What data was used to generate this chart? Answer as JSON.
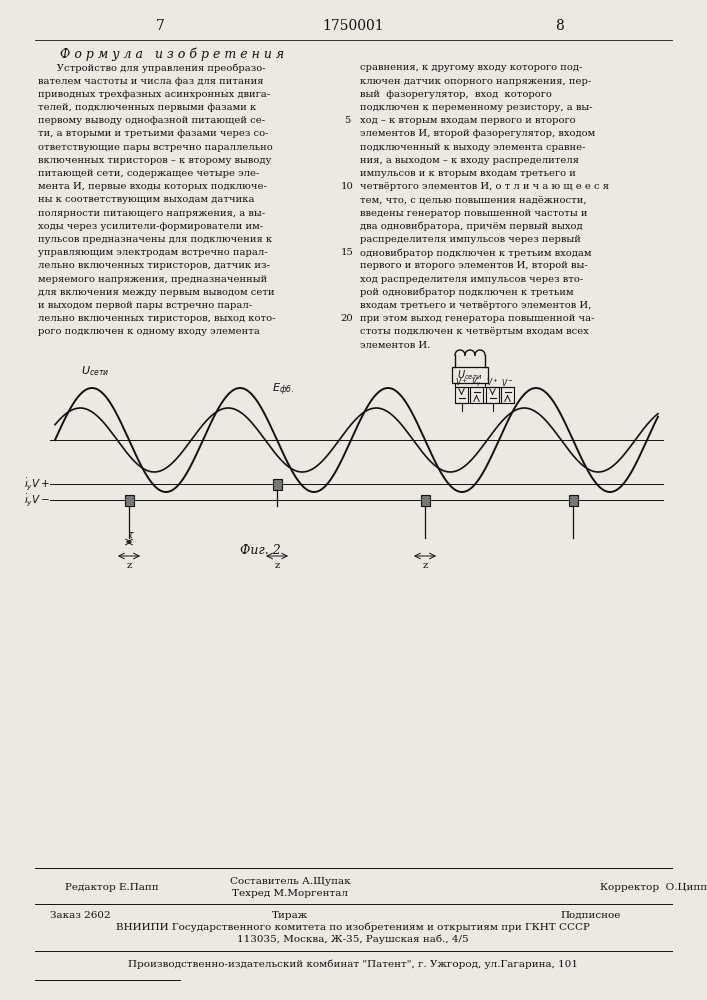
{
  "title": "1750001",
  "page_left": "7",
  "page_right": "8",
  "bg_color": "#ece9e2",
  "text_color": "#111111",
  "formula_title": "Ф о р м у л а   и з о б р е т е н и я",
  "left_text_lines": [
    "      Устройство для управления преобразо-",
    "вателем частоты и числа фаз для питания",
    "приводных трехфазных асинхронных двига-",
    "телей, подключенных первыми фазами к",
    "первому выводу однофазной питающей се-",
    "ти, а вторыми и третьими фазами через со-",
    "ответствующие пары встречно параллельно",
    "включенных тиристоров – к второму выводу",
    "питающей сети, содержащее четыре эле-",
    "мента И, первые входы которых подключе-",
    "ны к соответствующим выходам датчика",
    "полярности питающего напряжения, а вы-",
    "ходы через усилители-формирователи им-",
    "пульсов предназначены для подключения к",
    "управляющим электродам встречно парал-",
    "лельно включенных тиристоров, датчик из-",
    "меряемого напряжения, предназначенный",
    "для включения между первым выводом сети",
    "и выходом первой пары встречно парал-",
    "лельно включенных тиристоров, выход кото-",
    "рого подключен к одному входу элемента"
  ],
  "right_text_lines": [
    "сравнения, к другому входу которого под-",
    "ключен датчик опорного напряжения, пер-",
    "вый  фазорегулятор,  вход  которого",
    "подключен к переменному резистору, а вы-",
    "ход – к вторым входам первого и второго",
    "элементов И, второй фазорегулятор, входом",
    "подключенный к выходу элемента сравне-",
    "ния, а выходом – к входу распределителя",
    "импульсов и к вторым входам третьего и",
    "четвёртого элементов И, о т л и ч а ю щ е е с я",
    "тем, что, с целью повышения надёжности,",
    "введены генератор повышенной частоты и",
    "два одновибратора, причём первый выход",
    "распределителя импульсов через первый",
    "одновибратор подключен к третьим входам",
    "первого и второго элементов И, второй вы-",
    "ход распределителя импульсов через вто-",
    "рой одновибратор подключен к третьим",
    "входам третьего и четвёртого элементов И,",
    "при этом выход генератора повышенной ча-",
    "стоты подключен к четвёртым входам всех",
    "элементов И."
  ],
  "line_numbers": [
    "5",
    "10",
    "15",
    "20"
  ],
  "line_number_rows": [
    4,
    9,
    14,
    19
  ],
  "fig_caption": "Фиг. 2",
  "footer_editor": "Редактор Е.Папп",
  "footer_composer": "Составитель А.Щупак",
  "footer_techred": "Техред М.Моргентал",
  "footer_corrector": "Корректор  О.Циппле",
  "footer_order": "Заказ 2602",
  "footer_tirazh": "Тираж",
  "footer_podpisnoe": "Подписное",
  "footer_vniiipi": "ВНИИПИ Государственного комитета по изобретениям и открытиям при ГКНТ СССР",
  "footer_address": "113035, Москва, Ж-35, Раушская наб., 4/5",
  "footer_factory": "Производственно-издательский комбинат \"Патент\", г. Ужгород, ул.Гагарина, 101"
}
